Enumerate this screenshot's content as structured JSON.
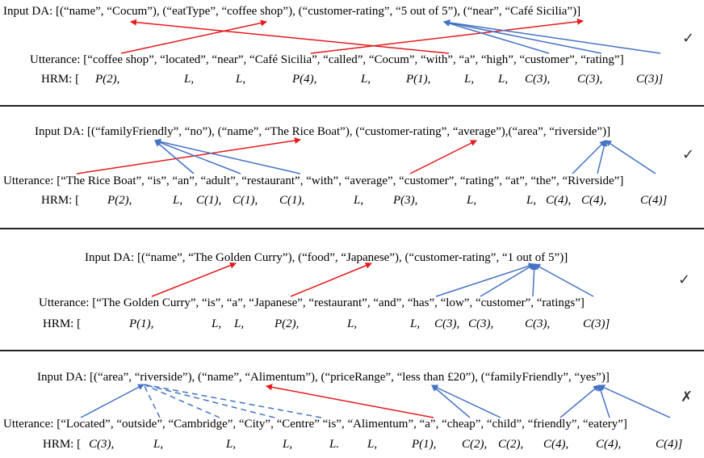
{
  "colors": {
    "red_arrow": "#e41a1c",
    "blue_arrow": "#4472c4",
    "divider": "#222222"
  },
  "panels": [
    {
      "da": "Input DA: [(“name”, “Cocum”), (“eatType”, “coffee shop”), (“customer-rating”, “5 out of 5”), (“near”, “Café Sicilia”)]",
      "utterance": "Utterance: [“coffee shop”, “located”, “near”, “Café Sicilia”, “called”, “Cocum”, “with”, “a”, “high”, “customer”, “rating”]",
      "hrm_label": "HRM: [",
      "hrm_tokens": [
        "P(2),",
        "L,",
        "L,",
        "P(4),",
        "L,",
        "P(1),",
        "L,",
        "L,",
        "C(3),",
        "C(3),",
        "C(3)]"
      ],
      "mark": "✓",
      "mark_icon": "check-icon"
    },
    {
      "da": "Input DA: [(“familyFriendly”, “no”), (“name”, “The Rice Boat”), (“customer-rating”, “average”),(“area”, “riverside”)]",
      "utterance": "Utterance: [“The Rice Boat”, “is”, “an”, “adult”, “restaurant”, “with”, “average”, “customer”, “rating”, “at”, “the”, “Riverside”]",
      "hrm_label": "HRM: [",
      "hrm_tokens": [
        "P(2),",
        "L,",
        "C(1),",
        "C(1),",
        "C(1),",
        "L,",
        "P(3),",
        "L,",
        "L,",
        "C(4),",
        "C(4),",
        "C(4)]"
      ],
      "mark": "✓",
      "mark_icon": "check-icon"
    },
    {
      "da": "Input DA: [(“name”, “The Golden Curry”), (“food”, “Japanese”), (“customer-rating”, “1 out of 5”)]",
      "utterance": "Utterance: [“The Golden Curry”, “is”, “a”, “Japanese”, “restaurant”, “and”, “has”, “low”, “customer”, “ratings”]",
      "hrm_label": "HRM: [",
      "hrm_tokens": [
        "P(1),",
        "L,",
        "L,",
        "P(2),",
        "L,",
        "L,",
        "C(3),",
        "C(3),",
        "C(3),",
        "C(3)]"
      ],
      "mark": "✓",
      "mark_icon": "check-icon"
    },
    {
      "da": "Input DA: [(“area”, “riverside”), (“name”, “Alimentum”), (“priceRange”, “less than £20”), (“familyFriendly”, “yes”)]",
      "utterance": "Utterance: [“Located”, “outside”, “Cambridge”, “City”, “Centre” “is”, “Alimentum”, “a”, “cheap”, “child”, “friendly”, “eatery”]",
      "hrm_label": "HRM: [",
      "hrm_tokens": [
        "C(3),",
        "L,",
        "L,",
        "L,",
        "L.",
        "L,",
        "P(1),",
        "C(2),",
        "C(2),",
        "C(4),",
        "C(4),",
        "C(4)]"
      ],
      "mark": "✗",
      "mark_icon": "cross-icon"
    }
  ]
}
